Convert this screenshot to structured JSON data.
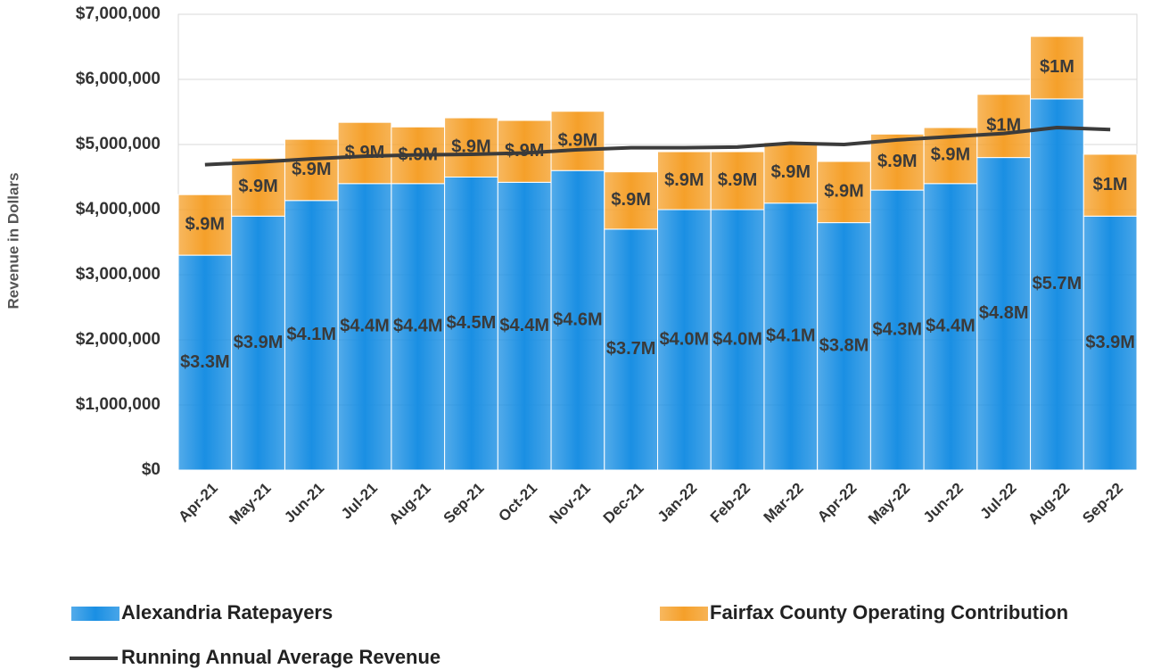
{
  "chart_data": {
    "type": "stacked_bar_line",
    "y_label": "Revenue in Dollars",
    "categories": [
      "Apr-21",
      "May-21",
      "Jun-21",
      "Jul-21",
      "Aug-21",
      "Sep-21",
      "Oct-21",
      "Nov-21",
      "Dec-21",
      "Jan-22",
      "Feb-22",
      "Mar-22",
      "Apr-22",
      "May-22",
      "Jun-22",
      "Jul-22",
      "Aug-22",
      "Sep-22"
    ],
    "series": [
      {
        "name": "Alexandria Ratepayers",
        "color": "#1a8fe3",
        "kind": "bar",
        "values": [
          3300000,
          3900000,
          4140000,
          4400000,
          4400000,
          4500000,
          4420000,
          4600000,
          3700000,
          4000000,
          4000000,
          4100000,
          3800000,
          4300000,
          4400000,
          4800000,
          5700000,
          3900000
        ],
        "value_labels": [
          "$3.3M",
          "$3.9M",
          "$4.1M",
          "$4.4M",
          "$4.4M",
          "$4.5M",
          "$4.4M",
          "$4.6M",
          "$3.7M",
          "$4.0M",
          "$4.0M",
          "$4.1M",
          "$3.8M",
          "$4.3M",
          "$4.4M",
          "$4.8M",
          "$5.7M",
          "$3.9M"
        ]
      },
      {
        "name": "Fairfax County Operating Contribution",
        "color": "#f5a02a",
        "kind": "bar",
        "values": [
          930000,
          890000,
          940000,
          940000,
          870000,
          910000,
          950000,
          910000,
          880000,
          890000,
          890000,
          930000,
          940000,
          860000,
          860000,
          970000,
          960000,
          950000
        ],
        "value_labels": [
          "$.9M",
          "$.9M",
          "$.9M",
          "$.9M",
          "$.9M",
          "$.9M",
          "$.9M",
          "$.9M",
          "$.9M",
          "$.9M",
          "$.9M",
          "$.9M",
          "$.9M",
          "$.9M",
          "$.9M",
          "$1M",
          "$1M",
          "$1M"
        ]
      },
      {
        "name": "Running Annual Average Revenue",
        "color": "#3b3b3b",
        "kind": "line",
        "values": [
          4690000,
          4730000,
          4780000,
          4820000,
          4840000,
          4850000,
          4870000,
          4920000,
          4950000,
          4950000,
          4960000,
          5020000,
          5000000,
          5070000,
          5120000,
          5170000,
          5260000,
          5230000
        ]
      }
    ],
    "ylim": [
      0,
      7000000
    ],
    "yticks": [
      {
        "value": 0,
        "label": "$0"
      },
      {
        "value": 1000000,
        "label": "$1,000,000"
      },
      {
        "value": 2000000,
        "label": "$2,000,000"
      },
      {
        "value": 3000000,
        "label": "$3,000,000"
      },
      {
        "value": 4000000,
        "label": "$4,000,000"
      },
      {
        "value": 5000000,
        "label": "$5,000,000"
      },
      {
        "value": 6000000,
        "label": "$6,000,000"
      },
      {
        "value": 7000000,
        "label": "$7,000,000"
      }
    ],
    "grid": true
  }
}
